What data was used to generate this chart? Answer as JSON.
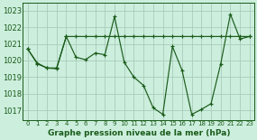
{
  "title": "Graphe pression niveau de la mer (hPa)",
  "background_color": "#cceedd",
  "line_color": "#1a5c1a",
  "grid_color": "#aaccbb",
  "xlim": [
    -0.5,
    23.5
  ],
  "ylim": [
    1016.4,
    1023.5
  ],
  "yticks": [
    1017,
    1018,
    1019,
    1020,
    1021,
    1022,
    1023
  ],
  "xticks": [
    0,
    1,
    2,
    3,
    4,
    5,
    6,
    7,
    8,
    9,
    10,
    11,
    12,
    13,
    14,
    15,
    16,
    17,
    18,
    19,
    20,
    21,
    22,
    23
  ],
  "series1_y": [
    1020.7,
    1019.8,
    1019.55,
    1019.55,
    1021.45,
    1020.2,
    1020.05,
    1020.45,
    1020.35,
    1022.65,
    1019.9,
    1019.0,
    1018.5,
    1017.15,
    1016.75,
    1020.85,
    1019.4,
    1016.75,
    1017.05,
    1017.4,
    1019.8,
    1022.8,
    1021.3,
    1021.45
  ],
  "series2_y": [
    1020.7,
    1019.85,
    1019.55,
    1019.5,
    1021.45,
    1021.45,
    1021.45,
    1021.45,
    1021.45,
    1021.45,
    1021.45,
    1021.45,
    1021.45,
    1021.45,
    1021.45,
    1021.45,
    1021.45,
    1021.45,
    1021.45,
    1021.45,
    1021.45,
    1021.45,
    1021.45,
    1021.45
  ]
}
